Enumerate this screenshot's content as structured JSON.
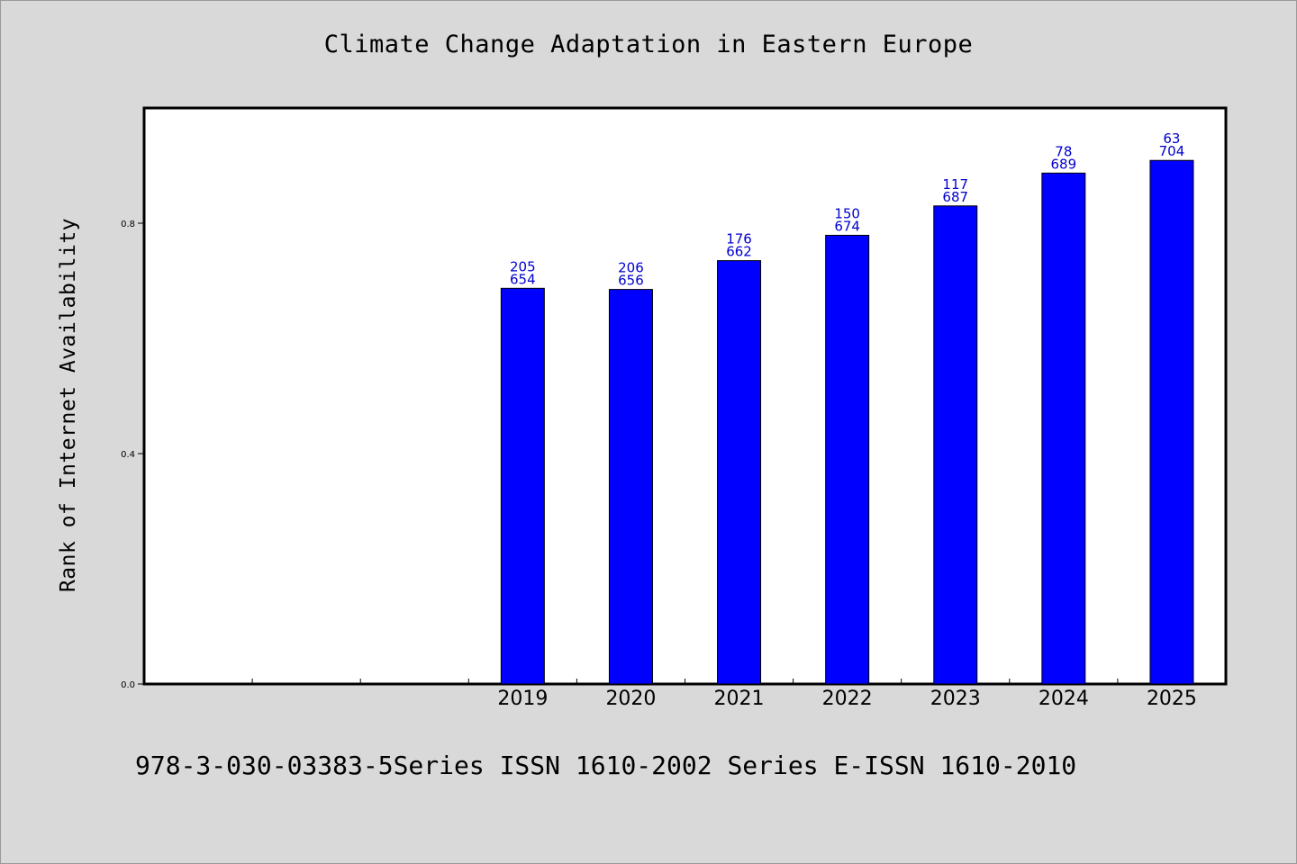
{
  "chart_data": {
    "type": "bar",
    "title": "Climate Change Adaptation in Eastern Europe",
    "xlabel": "",
    "ylabel": "Rank of Internet Availability",
    "ylim": [
      0.0,
      1.0
    ],
    "yticks": [
      "0.0",
      "0.4",
      "0.8"
    ],
    "ytick_values": [
      0.0,
      0.4,
      0.8
    ],
    "x_slots": 10,
    "categories": [
      "2019",
      "2020",
      "2021",
      "2022",
      "2023",
      "2024",
      "2025"
    ],
    "category_slot_start": 3,
    "values": [
      0.687,
      0.685,
      0.735,
      0.779,
      0.83,
      0.887,
      0.909
    ],
    "data_labels_top": [
      "205",
      "206",
      "176",
      "150",
      "117",
      "78",
      "63"
    ],
    "data_labels_bottom": [
      "654",
      "656",
      "662",
      "674",
      "687",
      "689",
      "704"
    ],
    "bar_color": "#0000ff",
    "label_color": "#0000cc",
    "grid": false,
    "legend": "none"
  },
  "footer": {
    "text": "978-3-030-03383-5Series ISSN 1610-2002 Series E-ISSN 1610-2010"
  }
}
